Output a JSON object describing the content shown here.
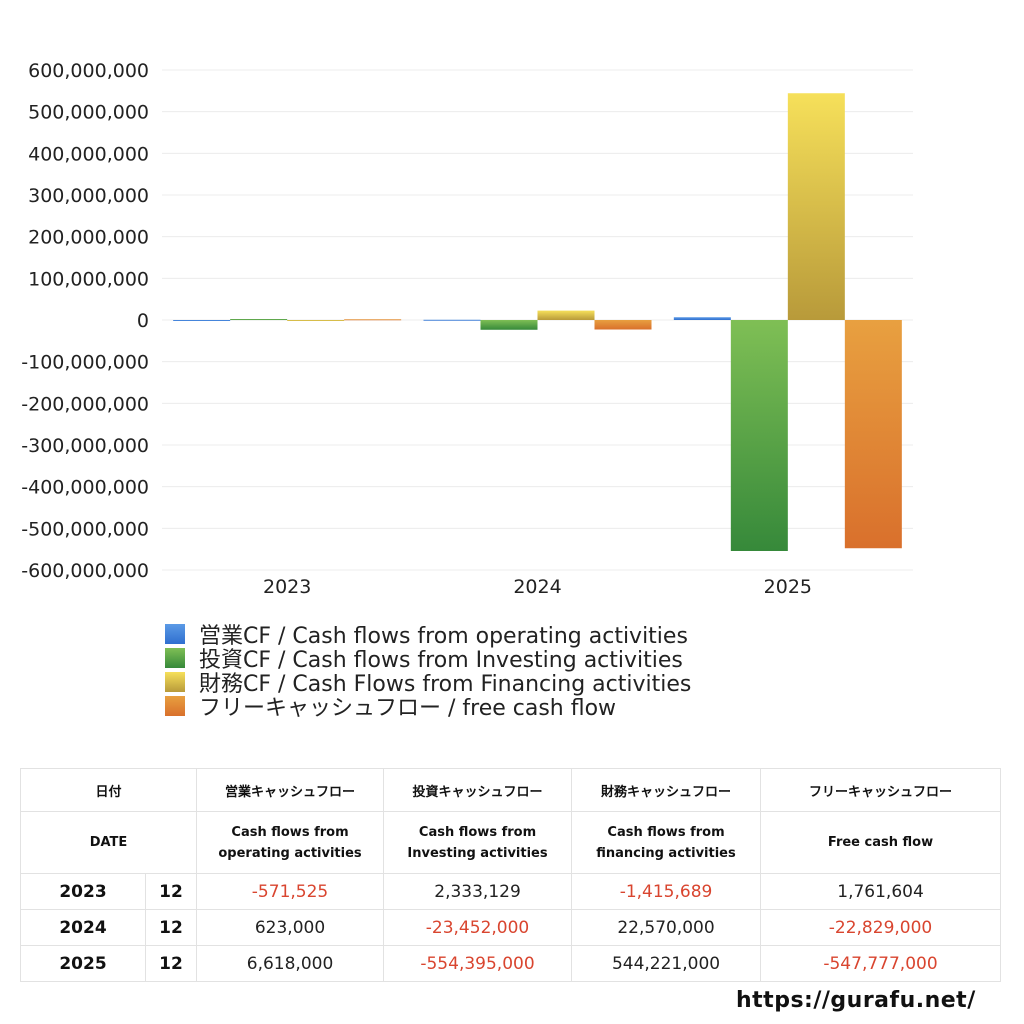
{
  "chart_data": {
    "type": "bar",
    "categories": [
      "2023",
      "2024",
      "2025"
    ],
    "ylim": [
      -600000000,
      600000000
    ],
    "yticks": [
      600000000,
      500000000,
      400000000,
      300000000,
      200000000,
      100000000,
      0,
      -100000000,
      -200000000,
      -300000000,
      -400000000,
      -500000000,
      -600000000
    ],
    "ytick_labels": [
      "600,000,000",
      "500,000,000",
      "400,000,000",
      "300,000,000",
      "200,000,000",
      "100,000,000",
      "0",
      "-100,000,000",
      "-200,000,000",
      "-300,000,000",
      "-400,000,000",
      "-500,000,000",
      "-600,000,000"
    ],
    "grid": true,
    "legend_position": "bottom",
    "series": [
      {
        "name": "営業CF / Cash flows from operating activities",
        "values": [
          -571525,
          623000,
          6618000
        ],
        "color_top": "#5b9ae6",
        "color_bottom": "#2f6fcf"
      },
      {
        "name": "投資CF / Cash flows from Investing activities",
        "values": [
          2333129,
          -23452000,
          -554395000
        ],
        "color_top": "#7fbf55",
        "color_bottom": "#36893a"
      },
      {
        "name": "財務CF / Cash Flows from Financing activities",
        "values": [
          -1415689,
          22570000,
          544221000
        ],
        "color_top": "#f6e05a",
        "color_bottom": "#b89a3a"
      },
      {
        "name": "フリーキャッシュフロー / free cash flow",
        "values": [
          1761604,
          -22829000,
          -547777000
        ],
        "color_top": "#e8a040",
        "color_bottom": "#d9702c"
      }
    ]
  },
  "table": {
    "headers_jp": [
      "日付",
      "営業キャッシュフロー",
      "投資キャッシュフロー",
      "財務キャッシュフロー",
      "フリーキャッシュフロー"
    ],
    "headers_en": [
      "DATE",
      "Cash flows from operating activities",
      "Cash flows from Investing activities",
      "Cash flows from financing activities",
      "Free cash flow"
    ],
    "headers_en_lines": [
      [
        "DATE"
      ],
      [
        "Cash flows from",
        "operating activities"
      ],
      [
        "Cash flows from",
        "Investing activities"
      ],
      [
        "Cash flows from",
        "financing activities"
      ],
      [
        "Free cash flow"
      ]
    ],
    "rows": [
      {
        "year": "2023",
        "month": "12",
        "values": [
          "-571,525",
          "2,333,129",
          "-1,415,689",
          "1,761,604"
        ]
      },
      {
        "year": "2024",
        "month": "12",
        "values": [
          "623,000",
          "-23,452,000",
          "22,570,000",
          "-22,829,000"
        ]
      },
      {
        "year": "2025",
        "month": "12",
        "values": [
          "6,618,000",
          "-554,395,000",
          "544,221,000",
          "-547,777,000"
        ]
      }
    ]
  },
  "footer": {
    "url": "https://gurafu.net/"
  }
}
